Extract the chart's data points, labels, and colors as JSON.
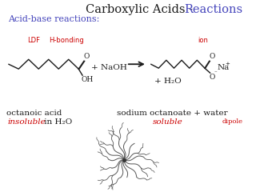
{
  "title_black": "Carboxylic Acids - ",
  "title_red": "Reactions",
  "subtitle": "Acid-base reactions:",
  "ldf_label": "LDF",
  "hbonding_label": "H-bonding",
  "ion_label": "ion",
  "dipole_label": "dipole",
  "naoh_label": "+ NaOH",
  "h2o_label": "+ H₂O",
  "oct_acid_label": "octanoic acid",
  "insoluble_label": "insoluble",
  "in_h2o_label": " in H₂O",
  "sod_oct_label": "sodium octanoate + water",
  "soluble_label": "soluble",
  "bg_color": "#ffffff",
  "black": "#1a1a1a",
  "red": "#cc0000",
  "blue": "#4444bb"
}
